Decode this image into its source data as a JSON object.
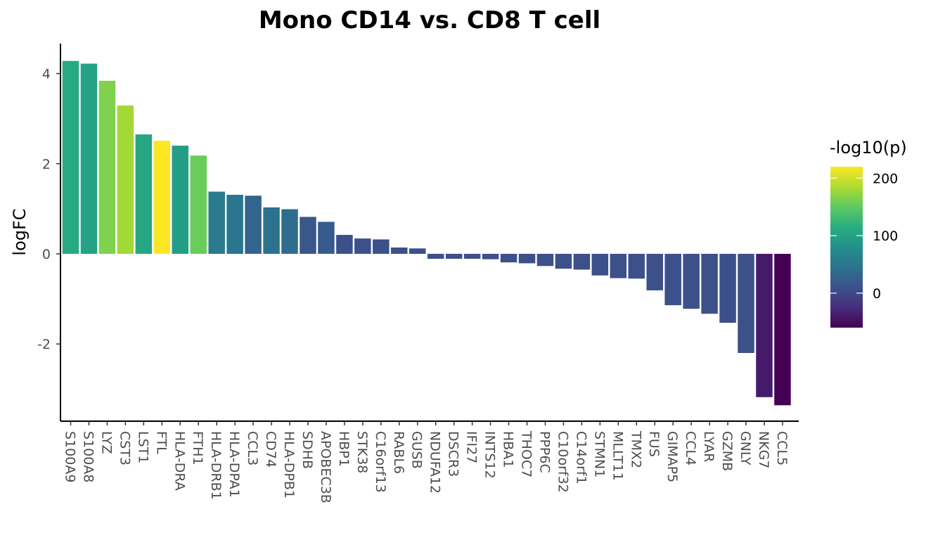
{
  "chart_data": {
    "type": "bar",
    "title": "Mono CD14 vs. CD8 T cell",
    "xlabel": "",
    "ylabel": "logFC",
    "ylim": [
      -3.75,
      4.5
    ],
    "y_ticks": [
      -2,
      0,
      2,
      4
    ],
    "y_tick_labels": [
      "-2",
      "0",
      "2",
      "4"
    ],
    "grid": false,
    "legend": {
      "title": "-log10(p)",
      "placement": "right",
      "type": "colorbar",
      "palette": "viridis",
      "range": [
        -60,
        220
      ],
      "ticks": [
        0,
        100,
        200
      ],
      "tick_labels": [
        "0",
        "100",
        "200"
      ]
    },
    "categories": [
      "S100A9",
      "S100A8",
      "LYZ",
      "CST3",
      "LST1",
      "FTL",
      "HLA-DRA",
      "FTH1",
      "HLA-DRB1",
      "HLA-DPA1",
      "CCL3",
      "CD74",
      "HLA-DPB1",
      "SDHB",
      "APOBEC3B",
      "HBP1",
      "STK38",
      "C16orf13",
      "RABL6",
      "GUSB",
      "NDUFA12",
      "DSCR3",
      "IFI27",
      "INTS12",
      "HBA1",
      "THOC7",
      "PPP6C",
      "C10orf32",
      "C14orf1",
      "STMN1",
      "MLLT11",
      "TMX2",
      "FUS",
      "GIMAP5",
      "CCL4",
      "LYAR",
      "GZMB",
      "GNLY",
      "NKG7",
      "CCL5"
    ],
    "values": [
      4.28,
      4.22,
      3.84,
      3.29,
      2.65,
      2.51,
      2.4,
      2.18,
      1.38,
      1.31,
      1.29,
      1.03,
      0.99,
      0.82,
      0.71,
      0.42,
      0.34,
      0.32,
      0.14,
      0.12,
      -0.11,
      -0.11,
      -0.11,
      -0.12,
      -0.19,
      -0.21,
      -0.27,
      -0.33,
      -0.35,
      -0.48,
      -0.54,
      -0.55,
      -0.81,
      -1.14,
      -1.22,
      -1.33,
      -1.53,
      -2.2,
      -3.18,
      -3.36
    ],
    "color_values": [
      110,
      100,
      165,
      180,
      105,
      220,
      95,
      155,
      55,
      50,
      30,
      45,
      40,
      15,
      20,
      8,
      8,
      8,
      8,
      8,
      8,
      8,
      8,
      8,
      8,
      8,
      8,
      8,
      8,
      8,
      8,
      8,
      8,
      8,
      8,
      8,
      8,
      8,
      -40,
      -60
    ]
  }
}
